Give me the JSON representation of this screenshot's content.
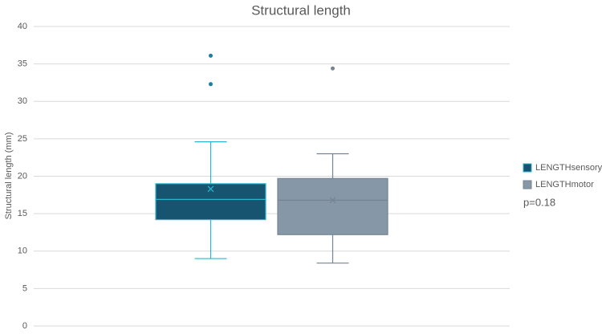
{
  "chart_data": {
    "type": "box",
    "title": "Structural length",
    "y_label": "Structural length (mm)",
    "annotation": "p=0.18",
    "ylim": [
      0,
      40
    ],
    "yticks": [
      0,
      5,
      10,
      15,
      20,
      25,
      30,
      35,
      40
    ],
    "grid": true,
    "series": [
      {
        "name": "LENGTHsensory",
        "color": "#165470",
        "edge_color": "#2ab4d0",
        "min": 9.0,
        "q1": 14.2,
        "median": 16.9,
        "q3": 19.0,
        "max": 24.6,
        "mean": 18.3,
        "outliers": [
          36.1,
          32.3
        ]
      },
      {
        "name": "LENGTHmotor",
        "color": "#8697a7",
        "edge_color": "#758492",
        "min": 8.4,
        "q1": 12.2,
        "median": 16.8,
        "q3": 19.7,
        "max": 23.0,
        "mean": 16.8,
        "outliers": [
          34.4
        ]
      }
    ]
  }
}
